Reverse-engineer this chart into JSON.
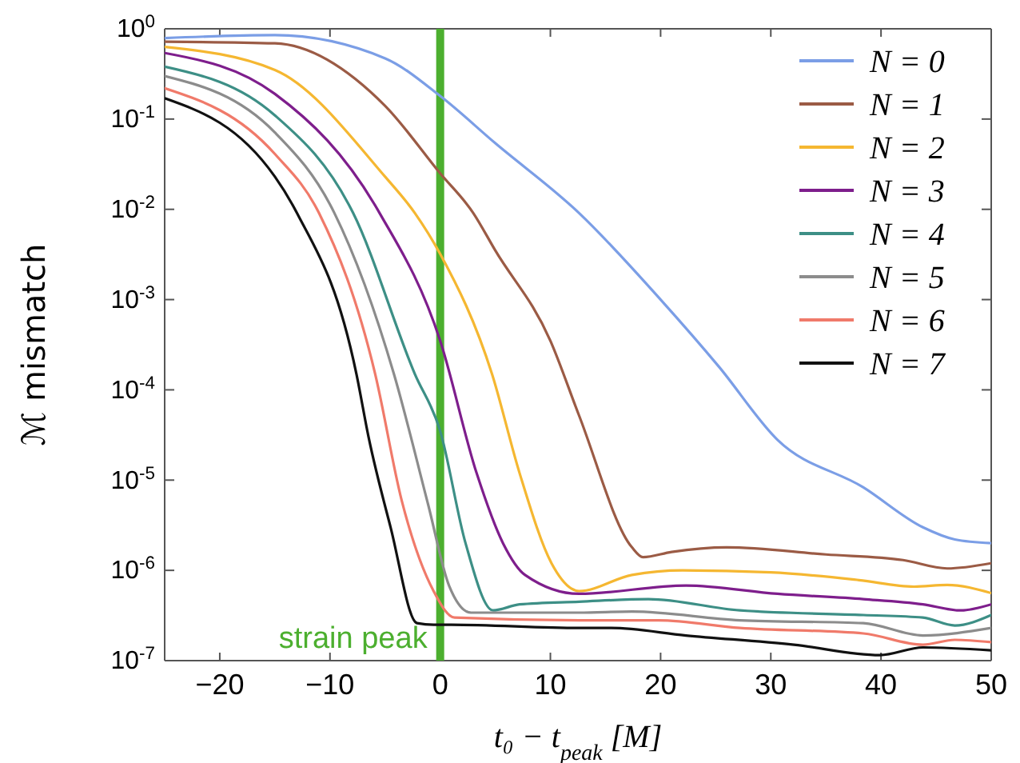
{
  "chart_data": {
    "type": "line",
    "xlabel": "t₀ − t$_{peak}$ [M]",
    "ylabel": "ℳ mismatch",
    "log": "y",
    "grid": false,
    "legend": "top right",
    "marker": "none",
    "line_style": "solid",
    "xlim": [
      -25,
      50
    ],
    "xticks": [
      -20,
      -10,
      0,
      10,
      20,
      30,
      40,
      50
    ],
    "ylim": [
      1e-07,
      1
    ],
    "yticks": [
      {
        "value": 1e-07,
        "label": "10$^{-7}$"
      },
      {
        "value": 1e-06,
        "label": "10$^{-6}$"
      },
      {
        "value": 1e-05,
        "label": "10$^{-5}$"
      },
      {
        "value": 0.0001,
        "label": "10$^{-4}$"
      },
      {
        "value": 0.001,
        "label": "10$^{-3}$"
      },
      {
        "value": 0.01,
        "label": "10$^{-2}$"
      },
      {
        "value": 0.1,
        "label": "10$^{-1}$"
      },
      {
        "value": 1,
        "label": "10$^{0}$"
      }
    ],
    "ref_lines": [
      {
        "axis": "x",
        "value": 0,
        "label": "strain peak",
        "color": "#4caf2f"
      }
    ],
    "series": [
      {
        "name": "N = 0",
        "color": "#7b9ee6",
        "x": [
          -25,
          -15,
          -5,
          0,
          5,
          12.6,
          20,
          25.3,
          30.6,
          38.4,
          43.8,
          46.7,
          50
        ],
        "values": [
          0.79,
          0.85,
          0.47,
          0.18,
          0.054,
          0.0091,
          0.001,
          0.00018,
          2.8e-05,
          8.3e-06,
          3e-06,
          2.2e-06,
          2e-06
        ]
      },
      {
        "name": "N = 1",
        "color": "#9b5b45",
        "x": [
          -25,
          -15,
          -5,
          0,
          3,
          5,
          10,
          12.6,
          17.4,
          18.4,
          21,
          26,
          35,
          42,
          46,
          50
        ],
        "values": [
          0.72,
          0.69,
          0.14,
          0.025,
          0.0091,
          0.0035,
          0.00035,
          5.2e-05,
          1.8e-06,
          1.4e-06,
          1.6e-06,
          1.8e-06,
          1.5e-06,
          1.3e-06,
          1.05e-06,
          1.2e-06
        ]
      },
      {
        "name": "N = 2",
        "color": "#f5b731",
        "x": [
          -25,
          -15,
          -5,
          -2.3,
          0,
          4.7,
          7.2,
          10.1,
          11.9,
          12.6,
          17.4,
          22,
          30,
          38,
          43,
          46,
          50
        ],
        "values": [
          0.63,
          0.35,
          0.023,
          0.0091,
          0.0032,
          0.00015,
          1.2e-05,
          1.2e-06,
          6.3e-07,
          5.9e-07,
          8.9e-07,
          1e-06,
          9.5e-07,
          7.8e-07,
          6.6e-07,
          6.9e-07,
          5.6e-07
        ]
      },
      {
        "name": "N = 3",
        "color": "#7e1e8c",
        "x": [
          -25,
          -15,
          -5.5,
          0,
          3.3,
          5.7,
          7.7,
          12.6,
          22.3,
          30.6,
          38.4,
          43.8,
          47.2,
          50
        ],
        "values": [
          0.54,
          0.19,
          0.0091,
          0.00035,
          1.2e-05,
          2e-06,
          8.9e-07,
          5.5e-07,
          6.8e-07,
          5.5e-07,
          4.8e-07,
          4.2e-07,
          3.6e-07,
          4.2e-07
        ]
      },
      {
        "name": "N = 4",
        "color": "#3d8f86",
        "x": [
          -25,
          -15,
          -7.9,
          -2.3,
          0,
          2.3,
          4.8,
          7.2,
          12.6,
          18.9,
          27.2,
          38.4,
          43.8,
          46.7,
          50
        ],
        "values": [
          0.38,
          0.11,
          0.0091,
          0.00015,
          3.5e-05,
          2e-06,
          3.6e-07,
          4.2e-07,
          4.5e-07,
          4.8e-07,
          3.6e-07,
          3.2e-07,
          3e-07,
          2.45e-07,
          3.2e-07
        ]
      },
      {
        "name": "N = 5",
        "color": "#8c8c8c",
        "x": [
          -25,
          -15,
          -9.6,
          -4.2,
          -1.1,
          0.8,
          2.8,
          12.6,
          17.4,
          27.2,
          38.4,
          43.8,
          50
        ],
        "values": [
          0.3,
          0.071,
          0.0091,
          0.00015,
          5.4e-06,
          6.8e-07,
          3.4e-07,
          3.4e-07,
          3.5e-07,
          2.8e-07,
          2.6e-07,
          1.9e-07,
          2.3e-07
        ]
      },
      {
        "name": "N = 6",
        "color": "#f07a6a",
        "x": [
          -25,
          -15,
          -11,
          -5.9,
          -3.5,
          -0.6,
          1.3,
          12.6,
          19.8,
          27.2,
          38.4,
          43.8,
          46.7,
          50
        ],
        "values": [
          0.22,
          0.041,
          0.0091,
          0.00015,
          6e-06,
          5.9e-07,
          3e-07,
          2.8e-07,
          2.8e-07,
          2.3e-07,
          2e-07,
          1.5e-07,
          1.7e-07,
          1.6e-07
        ]
      },
      {
        "name": "N = 7",
        "color": "#111111",
        "x": [
          -25,
          -15,
          -13,
          -7.6,
          -6.5,
          -4.5,
          -2.1,
          -0.6,
          1,
          12.6,
          15.5,
          22.3,
          32.1,
          39.9,
          43.8,
          50
        ],
        "values": [
          0.17,
          0.023,
          0.0091,
          0.00015,
          3e-05,
          3e-06,
          2.6e-07,
          2.5e-07,
          2.5e-07,
          2.3e-07,
          2.3e-07,
          1.9e-07,
          1.5e-07,
          1.15e-07,
          1.4e-07,
          1.3e-07
        ]
      }
    ]
  }
}
